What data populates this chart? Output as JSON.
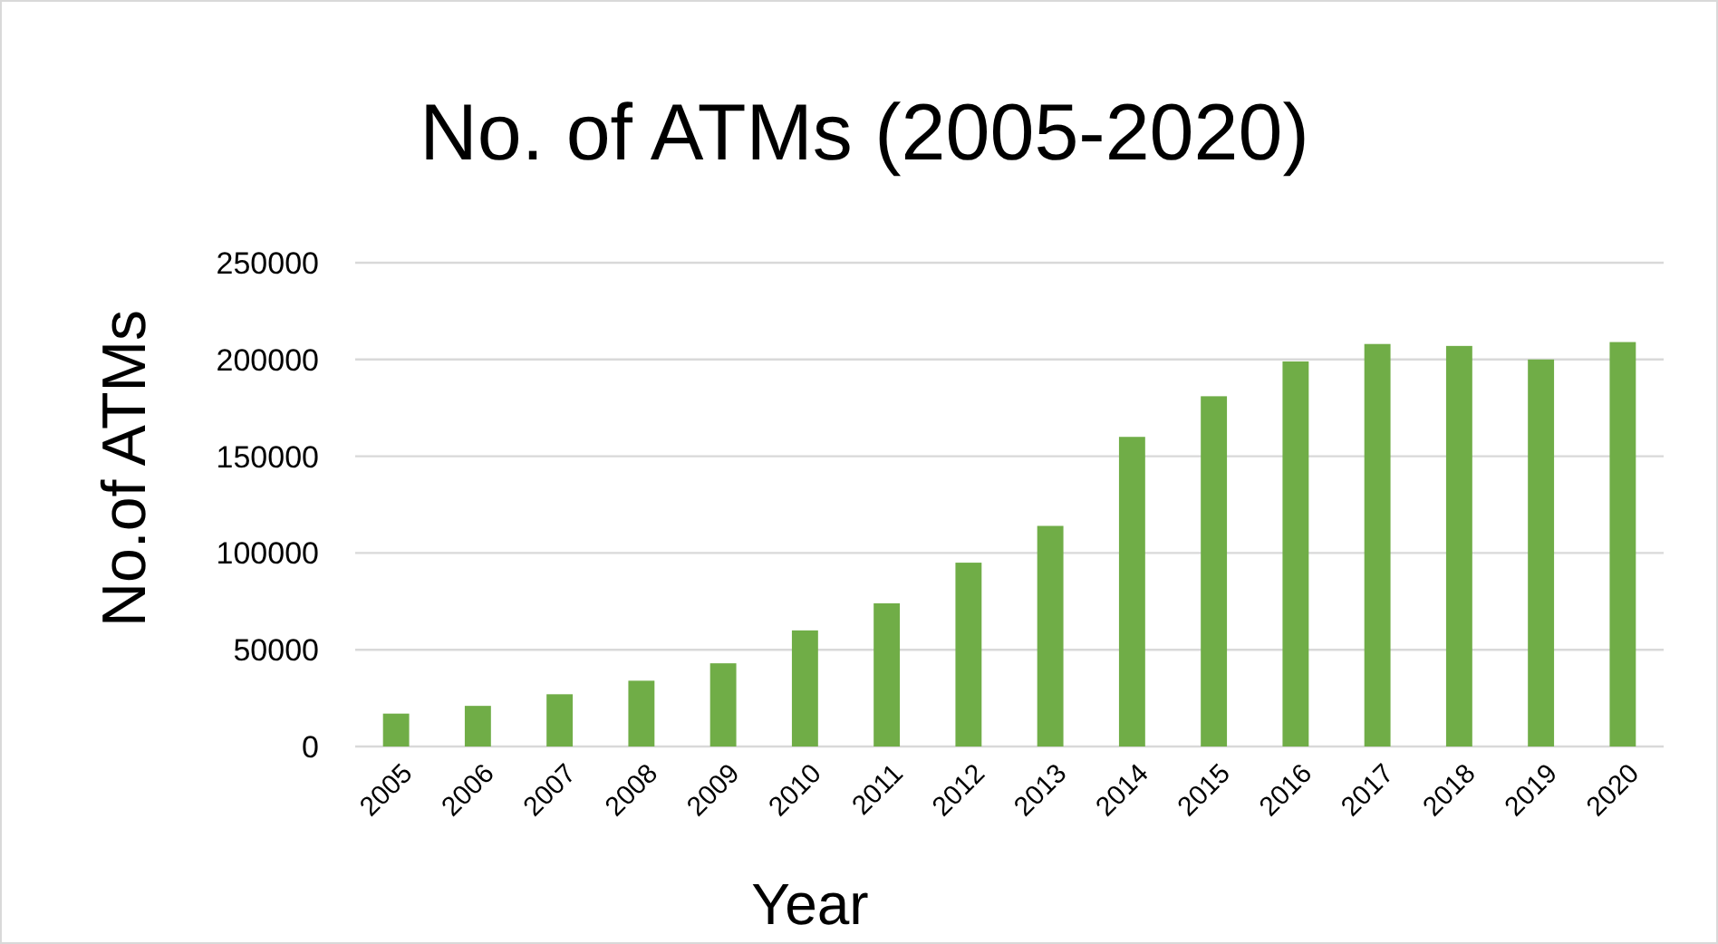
{
  "chart_data": {
    "type": "bar",
    "title": "No. of ATMs (2005-2020)",
    "xlabel": "Year",
    "ylabel": "No.of ATMs",
    "categories": [
      "2005",
      "2006",
      "2007",
      "2008",
      "2009",
      "2010",
      "2011",
      "2012",
      "2013",
      "2014",
      "2015",
      "2016",
      "2017",
      "2018",
      "2019",
      "2020"
    ],
    "values": [
      17000,
      21000,
      27000,
      34000,
      43000,
      60000,
      74000,
      95000,
      114000,
      160000,
      181000,
      199000,
      208000,
      207000,
      200000,
      209000
    ],
    "color": "#70ad47",
    "ylim": [
      0,
      250000
    ],
    "yticks": [
      0,
      50000,
      100000,
      150000,
      200000,
      250000
    ],
    "grid": "y"
  }
}
